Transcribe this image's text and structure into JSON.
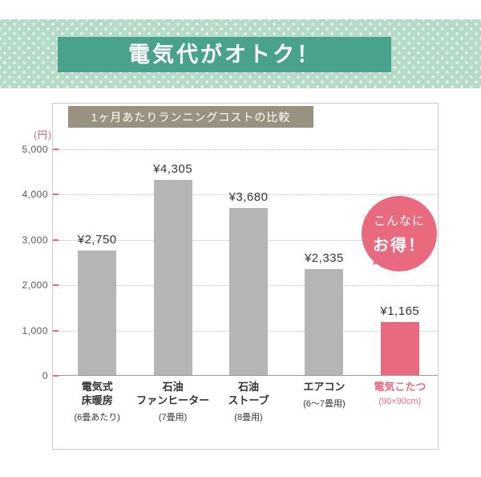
{
  "banner": {
    "title": "電気代がオトク！",
    "bg_color": "#b6dcc8",
    "title_box_color": "#49a28c"
  },
  "chart": {
    "title": "1ヶ月あたりランニングコストの比較",
    "title_bg_color": "#9a9181",
    "y_axis_unit": "(円)",
    "callout": {
      "line1": "こんなに",
      "line2": "お得！"
    }
  },
  "chart_data": {
    "type": "bar",
    "title": "1ヶ月あたりランニングコストの比較",
    "ylabel": "円",
    "ylim": [
      0,
      5000
    ],
    "yticks": [
      0,
      1000,
      2000,
      3000,
      4000,
      5000
    ],
    "grid": true,
    "categories": [
      "電気式\n床暖房",
      "石油\nファンヒーター",
      "石油\nストーブ",
      "エアコン",
      "電気こたつ"
    ],
    "sublabels": [
      "(6畳あたり)",
      "(7畳用)",
      "(8畳用)",
      "(6〜7畳用)",
      "(90×90cm)"
    ],
    "values": [
      2750,
      4305,
      3680,
      2335,
      1165
    ],
    "value_labels": [
      "¥2,750",
      "¥4,305",
      "¥3,680",
      "¥2,335",
      "¥1,165"
    ],
    "highlight_index": 4,
    "bar_color": "#b5b5b5",
    "highlight_color": "#e9697e"
  }
}
